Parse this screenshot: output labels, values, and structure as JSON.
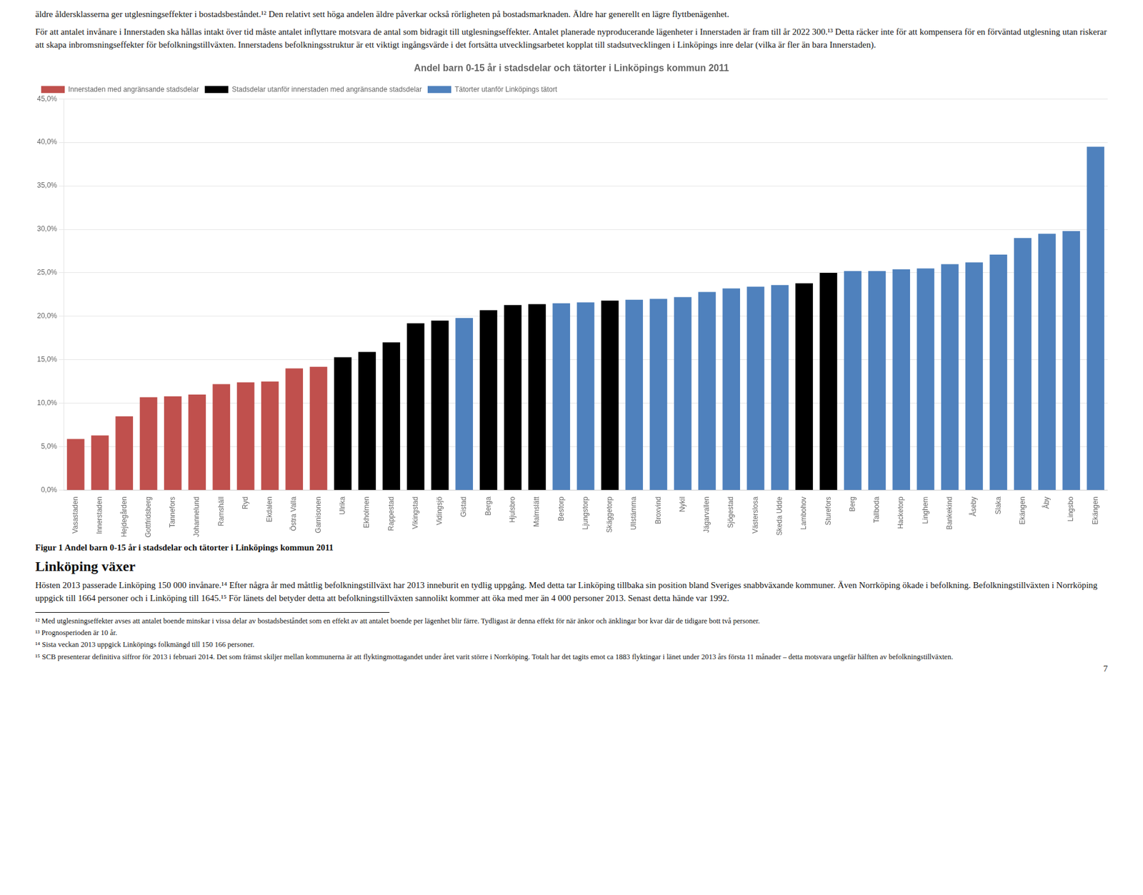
{
  "chart_data": {
    "type": "bar",
    "title": "Andel barn 0-15 år i stadsdelar och tätorter i Linköpings kommun 2011",
    "categories": [
      "Vasastaden",
      "Innerstaden",
      "Hejdegården",
      "Gottfridsberg",
      "Tannefors",
      "Johannelund",
      "Ramshäll",
      "Ryd",
      "Ekdalen",
      "Östra Valla",
      "Garnisonen",
      "Ulrika",
      "Ekholmen",
      "Rappestad",
      "Vikingstad",
      "Vidingsjö",
      "Gistad",
      "Berga",
      "Hjulsbro",
      "Malmslätt",
      "Bestorp",
      "Ljungstorp",
      "Skäggetorp",
      "Ullstämma",
      "Broxvind",
      "Nykil",
      "Jägarvallen",
      "Sjögestad",
      "Västerslosa",
      "Skeda Udde",
      "Lambohov",
      "Sturefors",
      "Berg",
      "Tallboda",
      "Hacketorp",
      "Linghem",
      "Bankekind",
      "Åseby",
      "Slaka",
      "Ekängen",
      "Åby",
      "Lingsbo",
      "Ekängen"
    ],
    "series": [
      {
        "name": "Innerstaden med angränsande stadsdelar",
        "color": "#C0504D",
        "values": [
          0.059,
          0.063,
          0.085,
          0.107,
          0.108,
          0.11,
          0.122,
          0.124,
          0.125,
          0.14,
          0.142,
          null,
          null,
          null,
          null,
          null,
          null,
          null,
          null,
          null,
          null,
          null,
          null,
          null,
          null,
          null,
          null,
          null,
          null,
          null,
          null,
          null,
          null,
          null,
          null,
          null,
          null,
          null,
          null,
          null,
          null,
          null,
          null
        ]
      },
      {
        "name": "Stadsdelar utanför innerstaden med angränsande stadsdelar",
        "color": "#000000",
        "values": [
          null,
          null,
          null,
          null,
          null,
          null,
          null,
          null,
          null,
          null,
          null,
          0.153,
          0.159,
          0.17,
          0.192,
          0.195,
          null,
          0.207,
          0.213,
          0.214,
          null,
          null,
          0.218,
          null,
          null,
          null,
          null,
          null,
          null,
          null,
          0.238,
          0.25,
          null,
          null,
          null,
          null,
          null,
          null,
          null,
          null,
          null,
          null,
          null
        ]
      },
      {
        "name": "Tätorter utanför Linköpings tätort",
        "color": "#4F81BD",
        "values": [
          null,
          null,
          null,
          null,
          null,
          null,
          null,
          null,
          null,
          null,
          null,
          null,
          null,
          null,
          null,
          null,
          0.198,
          null,
          null,
          null,
          0.215,
          0.216,
          null,
          0.219,
          0.22,
          0.222,
          0.228,
          0.232,
          0.234,
          0.236,
          null,
          null,
          0.252,
          0.252,
          0.254,
          0.255,
          0.26,
          0.262,
          0.271,
          0.29,
          0.295,
          0.298,
          0.395
        ]
      }
    ],
    "ylim": [
      0,
      0.45
    ],
    "yticks": [
      {
        "value": 0.0,
        "label": "0,0%"
      },
      {
        "value": 0.05,
        "label": "5,0%"
      },
      {
        "value": 0.1,
        "label": "10,0%"
      },
      {
        "value": 0.15,
        "label": "15,0%"
      },
      {
        "value": 0.2,
        "label": "20,0%"
      },
      {
        "value": 0.25,
        "label": "25,0%"
      },
      {
        "value": 0.3,
        "label": "30,0%"
      },
      {
        "value": 0.35,
        "label": "35,0%"
      },
      {
        "value": 0.4,
        "label": "40,0%"
      },
      {
        "value": 0.45,
        "label": "45,0%"
      }
    ],
    "grid": true,
    "legend": "upper left"
  },
  "text_top": [
    "äldre åldersklasserna ger utglesningseffekter i bostadsbeståndet.¹² Den relativt sett höga andelen äldre påverkar också rörligheten på bostadsmarknaden. Äldre har generellt en lägre flyttbenägenhet.",
    "För att antalet invånare i Innerstaden ska hållas intakt över tid måste antalet inflyttare motsvara de antal som bidragit till utglesningseffekter. Antalet planerade nyproducerande lägenheter i Innerstaden är fram till år 2022 300.¹³ Detta räcker inte för att kompensera för en förväntad utglesning utan riskerar att skapa inbromsningseffekter för befolkningstillväxten. Innerstadens befolkningsstruktur är ett viktigt ingångsvärde i det fortsätta utvecklingsarbetet kopplat till stadsutvecklingen i Linköpings inre delar (vilka är fler än bara Innerstaden)."
  ],
  "fig_caption": "Figur 1 Andel barn 0-15 år i stadsdelar och tätorter i Linköpings kommun 2011",
  "section_header": "Linköping växer",
  "text_bottom": "Hösten 2013 passerade Linköping 150 000 invånare.¹⁴ Efter några år med måttlig befolkningstillväxt har 2013 inneburit en tydlig uppgång. Med detta tar Linköping tillbaka sin position bland Sveriges snabbväxande kommuner. Även Norrköping ökade i befolkning. Befolkningstillväxten i Norrköping uppgick till 1664 personer och i Linköping till 1645.¹⁵ För länets del betyder detta att befolkningstillväxten sannolikt kommer att öka med mer än 4 000 personer 2013. Senast detta hände var 1992.",
  "footnotes": [
    "¹² Med utglesningseffekter avses att antalet boende minskar i vissa delar av bostadsbeståndet som en effekt av att antalet boende per lägenhet blir färre. Tydligast är denna effekt för när änkor och änklingar bor kvar där de tidigare bott två personer.",
    "¹³ Prognosperioden är 10 år.",
    "¹⁴ Sista veckan 2013 uppgick Linköpings folkmängd till 150 166 personer.",
    "¹⁵ SCB presenterar definitiva siffror för 2013 i februari 2014. Det som främst skiljer mellan kommunerna är att flyktingmottagandet under året varit större i Norrköping. Totalt har det tagits emot ca 1883 flyktingar i länet under 2013 års första 11 månader – detta motsvara ungefär hälften av befolkningstillväxten."
  ],
  "page_number": "7"
}
